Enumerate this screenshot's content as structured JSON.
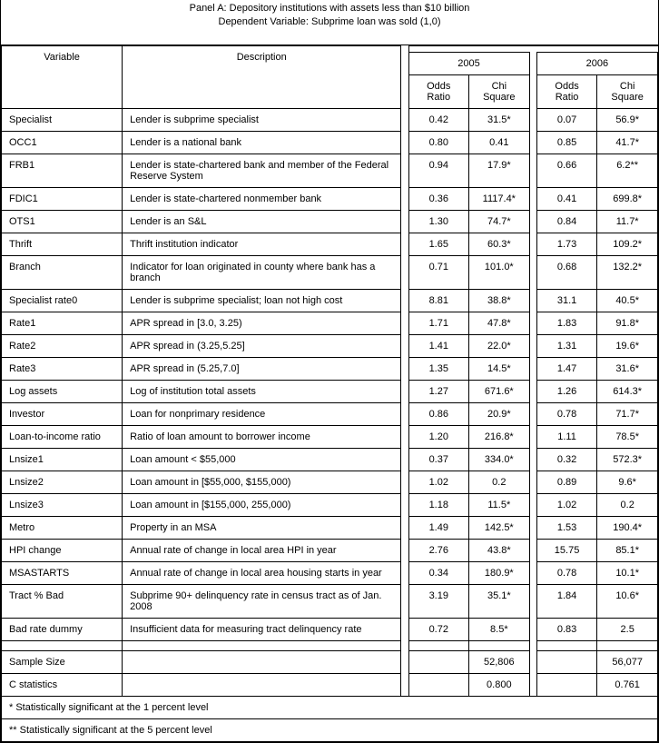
{
  "header": {
    "line1": "Panel A: Depository institutions with assets less than $10 billion",
    "line2": "Dependent Variable: Subprime loan was sold (1,0)"
  },
  "colheads": {
    "variable": "Variable",
    "description": "Description",
    "y2005": "2005",
    "y2006": "2006",
    "odds": "Odds Ratio",
    "chi": "Chi Square"
  },
  "rows": [
    {
      "var": "Specialist",
      "desc": "Lender is subprime specialist",
      "or05": "0.42",
      "cs05": "31.5*",
      "or06": "0.07",
      "cs06": "56.9*"
    },
    {
      "var": "OCC1",
      "desc": "Lender is a national bank",
      "or05": "0.80",
      "cs05": "0.41",
      "or06": "0.85",
      "cs06": "41.7*"
    },
    {
      "var": "FRB1",
      "desc": "Lender is state-chartered bank and member of the Federal Reserve System",
      "or05": "0.94",
      "cs05": "17.9*",
      "or06": "0.66",
      "cs06": "6.2**"
    },
    {
      "var": "FDIC1",
      "desc": "Lender is  state-chartered nonmember bank",
      "or05": "0.36",
      "cs05": "1117.4*",
      "or06": "0.41",
      "cs06": "699.8*"
    },
    {
      "var": "OTS1",
      "desc": "Lender is an S&L",
      "or05": "1.30",
      "cs05": "74.7*",
      "or06": "0.84",
      "cs06": "11.7*"
    },
    {
      "var": "Thrift",
      "desc": "Thrift institution indicator",
      "or05": "1.65",
      "cs05": "60.3*",
      "or06": "1.73",
      "cs06": "109.2*"
    },
    {
      "var": "Branch",
      "desc": "Indicator for loan originated in county where bank has a branch",
      "or05": "0.71",
      "cs05": "101.0*",
      "or06": "0.68",
      "cs06": "132.2*"
    },
    {
      "var": "Specialist rate0",
      "desc": "Lender is subprime specialist; loan not high cost",
      "or05": "8.81",
      "cs05": "38.8*",
      "or06": "31.1",
      "cs06": "40.5*"
    },
    {
      "var": "Rate1",
      "desc": "APR spread in [3.0, 3.25)",
      "or05": "1.71",
      "cs05": "47.8*",
      "or06": "1.83",
      "cs06": "91.8*"
    },
    {
      "var": "Rate2",
      "desc": "APR spread in (3.25,5.25]",
      "or05": "1.41",
      "cs05": "22.0*",
      "or06": "1.31",
      "cs06": "19.6*"
    },
    {
      "var": "Rate3",
      "desc": "APR spread in (5.25,7.0]",
      "or05": "1.35",
      "cs05": "14.5*",
      "or06": "1.47",
      "cs06": "31.6*"
    },
    {
      "var": "Log assets",
      "desc": "Log of institution total assets",
      "or05": "1.27",
      "cs05": "671.6*",
      "or06": "1.26",
      "cs06": "614.3*"
    },
    {
      "var": "Investor",
      "desc": "Loan for nonprimary residence",
      "or05": "0.86",
      "cs05": "20.9*",
      "or06": "0.78",
      "cs06": "71.7*"
    },
    {
      "var": "Loan-to-income ratio",
      "desc": "Ratio of loan amount to borrower income",
      "or05": "1.20",
      "cs05": "216.8*",
      "or06": "1.11",
      "cs06": "78.5*"
    },
    {
      "var": "Lnsize1",
      "desc": "Loan amount < $55,000",
      "or05": "0.37",
      "cs05": "334.0*",
      "or06": "0.32",
      "cs06": "572.3*"
    },
    {
      "var": "Lnsize2",
      "desc": "Loan amount in [$55,000, $155,000)",
      "or05": "1.02",
      "cs05": "0.2",
      "or06": "0.89",
      "cs06": "9.6*"
    },
    {
      "var": "Lnsize3",
      "desc": "Loan amount in [$155,000, 255,000)",
      "or05": "1.18",
      "cs05": "11.5*",
      "or06": "1.02",
      "cs06": "0.2"
    },
    {
      "var": "Metro",
      "desc": "Property in an MSA",
      "or05": "1.49",
      "cs05": "142.5*",
      "or06": "1.53",
      "cs06": "190.4*"
    },
    {
      "var": "HPI change",
      "desc": "Annual rate of change in local area HPI in year",
      "or05": "2.76",
      "cs05": "43.8*",
      "or06": "15.75",
      "cs06": "85.1*"
    },
    {
      "var": "MSASTARTS",
      "desc": "Annual rate of change in local area housing starts in year",
      "or05": "0.34",
      "cs05": "180.9*",
      "or06": "0.78",
      "cs06": "10.1*"
    },
    {
      "var": "Tract % Bad",
      "desc": "Subprime 90+ delinquency rate in census tract as of Jan. 2008",
      "or05": "3.19",
      "cs05": "35.1*",
      "or06": "1.84",
      "cs06": "10.6*"
    },
    {
      "var": "Bad rate dummy",
      "desc": "Insufficient data for measuring tract delinquency rate",
      "or05": "0.72",
      "cs05": "8.5*",
      "or06": "0.83",
      "cs06": "2.5"
    }
  ],
  "summary": {
    "sample_label": "Sample Size",
    "sample_05": "52,806",
    "sample_06": "56,077",
    "cstat_label": "C statistics",
    "cstat_05": "0.800",
    "cstat_06": "0.761"
  },
  "footnotes": {
    "f1": "* Statistically significant at the 1 percent level",
    "f2": "** Statistically significant at the 5 percent level"
  }
}
